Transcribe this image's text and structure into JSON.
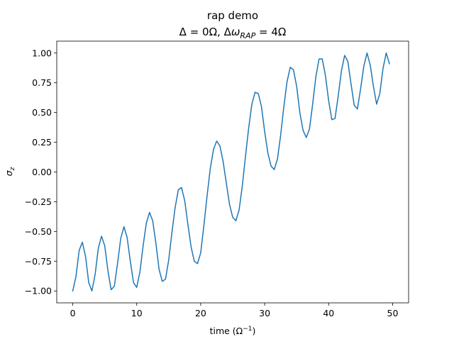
{
  "chart_data": {
    "type": "line",
    "title": "rap demo",
    "subtitle": "Δ = 0Ω, Δω_RAP = 4Ω",
    "xlabel": "time (Ω⁻¹)",
    "ylabel": "σ_z",
    "xlim": [
      -2.5,
      52.5
    ],
    "ylim": [
      -1.1,
      1.1
    ],
    "xticks": [
      0,
      10,
      20,
      30,
      40,
      50
    ],
    "yticks": [
      -1.0,
      -0.75,
      -0.5,
      -0.25,
      0.0,
      0.25,
      0.5,
      0.75,
      1.0
    ],
    "grid": false,
    "line_color": "#1f77b4",
    "series": [
      {
        "x": [
          0.0,
          0.5,
          1.0,
          1.5,
          2.0,
          2.5,
          3.0,
          3.5,
          4.0,
          4.5,
          5.0,
          5.5,
          6.0,
          6.5,
          7.0,
          7.5,
          8.0,
          8.5,
          9.0,
          9.5,
          10.0,
          10.5,
          11.0,
          11.5,
          12.0,
          12.5,
          13.0,
          13.5,
          14.0,
          14.5,
          15.0,
          15.5,
          16.0,
          16.5,
          17.0,
          17.5,
          18.0,
          18.5,
          19.0,
          19.5,
          20.0,
          20.5,
          21.0,
          21.5,
          22.0,
          22.5,
          23.0,
          23.5,
          24.0,
          24.5,
          25.0,
          25.5,
          26.0,
          26.5,
          27.0,
          27.5,
          28.0,
          28.5,
          29.0,
          29.5,
          30.0,
          30.5,
          31.0,
          31.5,
          32.0,
          32.5,
          33.0,
          33.5,
          34.0,
          34.5,
          35.0,
          35.5,
          36.0,
          36.5,
          37.0,
          37.5,
          38.0,
          38.5,
          39.0,
          39.5,
          40.0,
          40.5,
          41.0,
          41.5,
          42.0,
          42.5,
          43.0,
          43.5,
          44.0,
          44.5,
          45.0,
          45.5,
          46.0,
          46.5,
          47.0,
          47.5,
          48.0,
          48.5,
          49.0,
          49.5
        ],
        "y": [
          -1.0,
          -0.88,
          -0.66,
          -0.59,
          -0.71,
          -0.93,
          -1.0,
          -0.86,
          -0.64,
          -0.54,
          -0.62,
          -0.83,
          -0.99,
          -0.96,
          -0.77,
          -0.56,
          -0.46,
          -0.55,
          -0.75,
          -0.93,
          -0.97,
          -0.84,
          -0.62,
          -0.43,
          -0.34,
          -0.41,
          -0.6,
          -0.82,
          -0.92,
          -0.9,
          -0.74,
          -0.51,
          -0.3,
          -0.15,
          -0.13,
          -0.24,
          -0.44,
          -0.63,
          -0.75,
          -0.77,
          -0.68,
          -0.45,
          -0.2,
          0.03,
          0.19,
          0.26,
          0.22,
          0.09,
          -0.09,
          -0.27,
          -0.38,
          -0.41,
          -0.32,
          -0.12,
          0.13,
          0.37,
          0.57,
          0.67,
          0.66,
          0.55,
          0.34,
          0.16,
          0.05,
          0.02,
          0.11,
          0.31,
          0.55,
          0.76,
          0.88,
          0.86,
          0.72,
          0.5,
          0.35,
          0.29,
          0.36,
          0.57,
          0.8,
          0.95,
          0.95,
          0.81,
          0.6,
          0.44,
          0.45,
          0.64,
          0.85,
          0.98,
          0.93,
          0.74,
          0.56,
          0.53,
          0.7,
          0.89,
          1.0,
          0.9,
          0.72,
          0.57,
          0.66,
          0.87,
          1.0,
          0.91
        ]
      }
    ]
  }
}
